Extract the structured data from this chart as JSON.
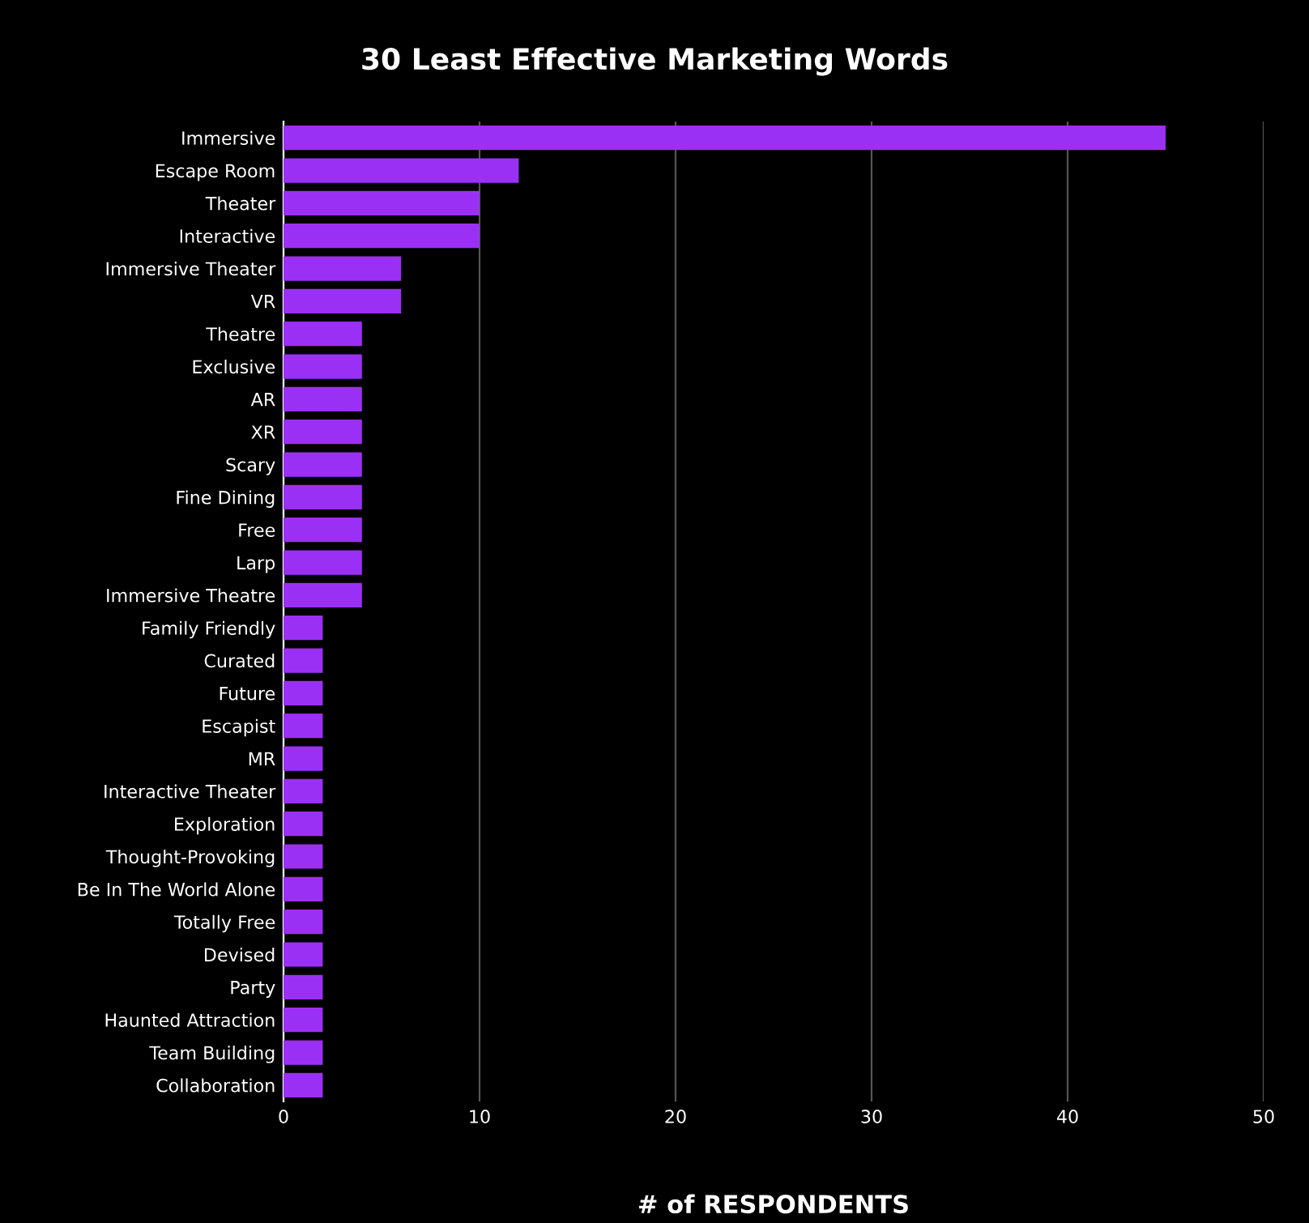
{
  "chart_data": {
    "type": "bar",
    "orientation": "horizontal",
    "title": "30 Least Effective Marketing Words",
    "xlabel": "# of RESPONDENTS",
    "categories": [
      "Immersive",
      "Escape Room",
      "Theater",
      "Interactive",
      "Immersive Theater",
      "VR",
      "Theatre",
      "Exclusive",
      "AR",
      "XR",
      "Scary",
      "Fine Dining",
      "Free",
      "Larp",
      "Immersive Theatre",
      "Family Friendly",
      "Curated",
      "Future",
      "Escapist",
      "MR",
      "Interactive Theater",
      "Exploration",
      "Thought-Provoking",
      "Be In The World Alone",
      "Totally Free",
      "Devised",
      "Party",
      "Haunted Attraction",
      "Team Building",
      "Collaboration"
    ],
    "values": [
      45,
      12,
      10,
      10,
      6,
      6,
      4,
      4,
      4,
      4,
      4,
      4,
      4,
      4,
      4,
      2,
      2,
      2,
      2,
      2,
      2,
      2,
      2,
      2,
      2,
      2,
      2,
      2,
      2,
      2
    ],
    "color": "#9b30f5",
    "xlim": [
      0,
      50
    ],
    "xticks": [
      0,
      10,
      20,
      30,
      40,
      50
    ],
    "grid": "x"
  }
}
